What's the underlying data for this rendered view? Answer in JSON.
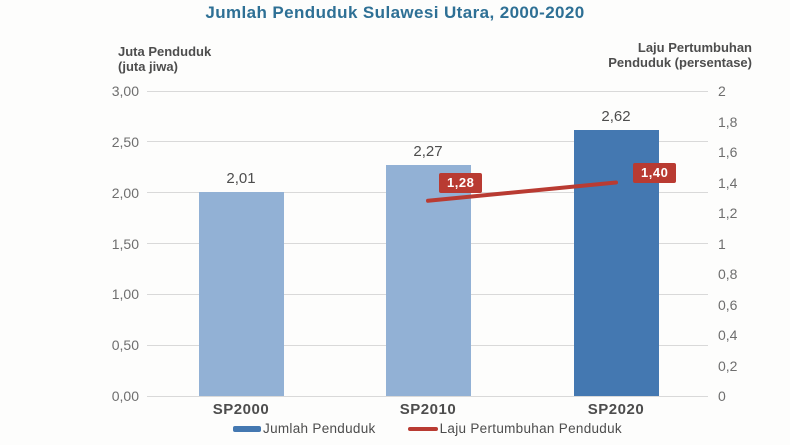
{
  "chart_data": {
    "type": "bar",
    "subtype": "bar-and-line-combo",
    "title": "Jumlah Penduduk Sulawesi Utara, 2000-2020",
    "title_color": "#2e7095",
    "categories": [
      "SP2000",
      "SP2010",
      "SP2020"
    ],
    "left_axis": {
      "title_line1": "Juta Penduduk",
      "title_line2": "(juta jiwa)",
      "min": 0,
      "max": 3,
      "ticks": [
        "3,00",
        "2,50",
        "2,00",
        "1,50",
        "1,00",
        "0,50",
        "0,00"
      ]
    },
    "right_axis": {
      "title_line1": "Laju Pertumbuhan",
      "title_line2": "Penduduk (persentase)",
      "min": 0,
      "max": 2,
      "ticks": [
        "2",
        "1,8",
        "1,6",
        "1,4",
        "1,2",
        "1",
        "0,8",
        "0,6",
        "0,4",
        "0,2",
        "0"
      ]
    },
    "series": [
      {
        "name": "Jumlah Penduduk",
        "kind": "bar",
        "axis": "left",
        "values": [
          2.01,
          2.27,
          2.62
        ],
        "value_labels": [
          "2,01",
          "2,27",
          "2,62"
        ],
        "bar_colors": [
          "#92b1d5",
          "#92b1d5",
          "#4478b1"
        ]
      },
      {
        "name": "Laju Pertumbuhan Penduduk",
        "kind": "line",
        "axis": "right",
        "values": [
          null,
          1.28,
          1.4
        ],
        "value_labels": [
          null,
          "1,28",
          "1,40"
        ],
        "color": "#b93b32",
        "label_bg": "#b93b32",
        "label_text_color": "#ffffff"
      }
    ],
    "grid": true,
    "grid_color": "#d9d9d9",
    "legend_position": "bottom",
    "legend": [
      {
        "label": "Jumlah Penduduk",
        "swatch": "bar",
        "color": "#4478b1"
      },
      {
        "label": "Laju Pertumbuhan Penduduk",
        "swatch": "line",
        "color": "#b93b32"
      }
    ]
  }
}
